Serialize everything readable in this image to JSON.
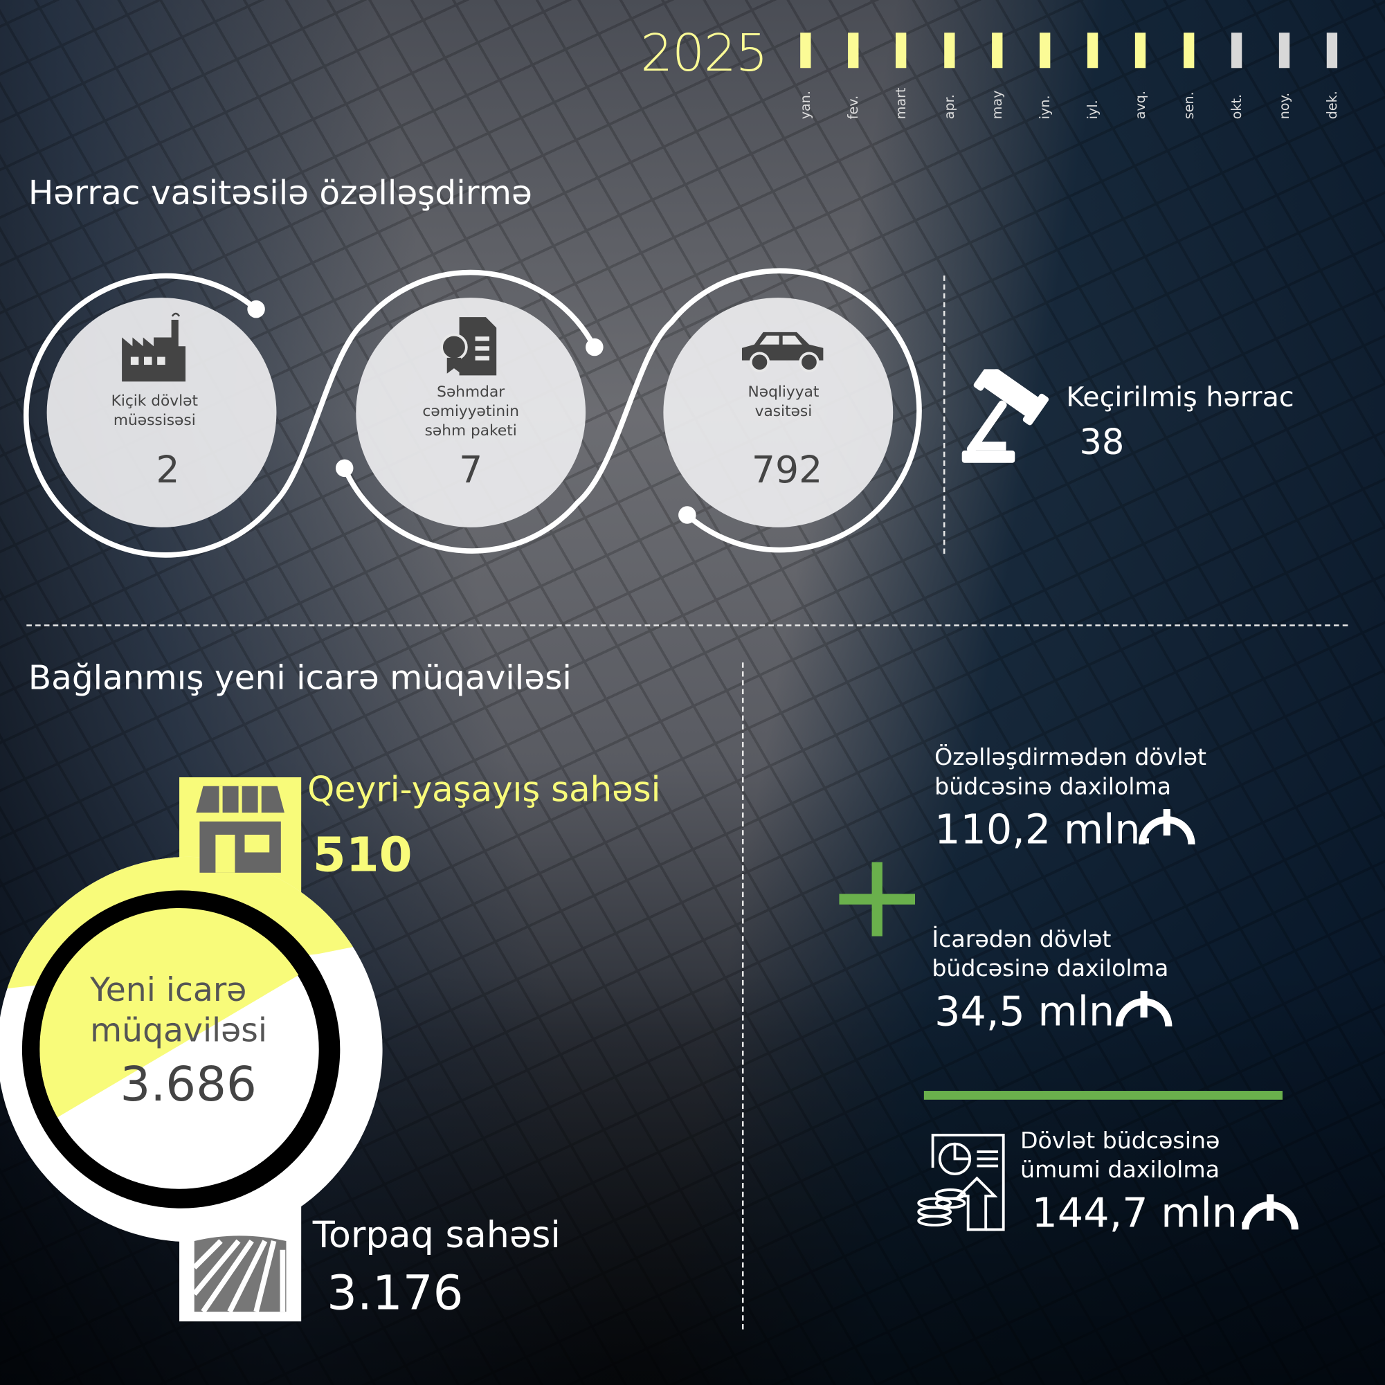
{
  "timeline": {
    "year": "2025",
    "months": [
      "yan.",
      "fev.",
      "mart",
      "apr.",
      "may",
      "iyn.",
      "iyl.",
      "avq.",
      "sen.",
      "okt.",
      "noy.",
      "dek."
    ],
    "completed_months": 9,
    "active_color": "#fbfb96",
    "inactive_color": "#d8d8d8"
  },
  "auction": {
    "title": "Hərrac vasitəsilə özəlləşdirmə",
    "items": [
      {
        "icon": "factory-icon",
        "label_lines": [
          "Kiçik dövlət",
          "müəssisəsi"
        ],
        "value": "2"
      },
      {
        "icon": "share-certificate-icon",
        "label_lines": [
          "Səhmdar",
          "cəmiyyətinin",
          "səhm paketi"
        ],
        "value": "7"
      },
      {
        "icon": "car-icon",
        "label_lines": [
          "Nəqliyyat",
          "vasitəsi"
        ],
        "value": "792"
      }
    ],
    "held": {
      "icon": "gavel-icon",
      "label": "Keçirilmiş hərrac",
      "value": "38"
    }
  },
  "lease": {
    "title": "Bağlanmış yeni icarə müqaviləsi",
    "non_residential": {
      "icon": "store-icon",
      "label": "Qeyri-yaşayış sahəsi",
      "value": "510"
    },
    "total": {
      "label_lines": [
        "Yeni icarə",
        "müqaviləsi"
      ],
      "value": "3.686"
    },
    "land": {
      "icon": "field-icon",
      "label": "Torpaq sahəsi",
      "value": "3.176"
    }
  },
  "budget": {
    "privatization": {
      "label_lines": [
        "Özəlləşdirmədən dövlət",
        "büdcəsinə daxilolma"
      ],
      "value": "110,2 mln."
    },
    "lease": {
      "label_lines": [
        "İcarədən dövlət",
        "büdcəsinə daxilolma"
      ],
      "value": "34,5 mln."
    },
    "total": {
      "icon": "budget-report-icon",
      "label_lines": [
        "Dövlət büdcəsinə",
        "ümumi daxilolma"
      ],
      "value": "144,7 mln."
    },
    "currency_icon": "manat-icon",
    "accent_color": "#6ab04c"
  }
}
